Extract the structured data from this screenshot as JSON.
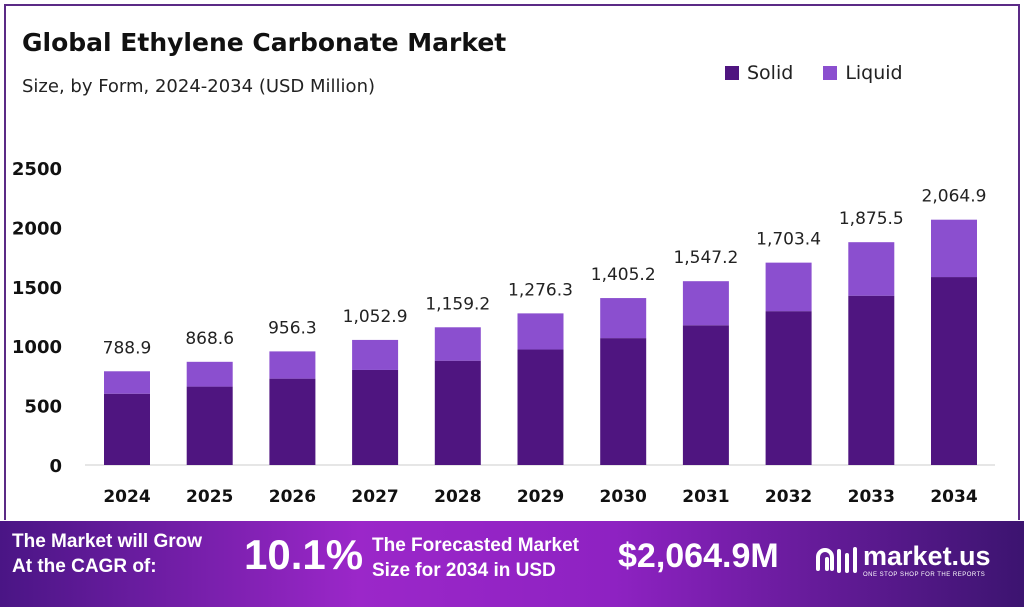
{
  "chart_data": {
    "type": "bar",
    "stacked": true,
    "title": "Global Ethylene Carbonate Market",
    "subtitle": "Size, by Form, 2024-2034 (USD Million)",
    "categories": [
      "2024",
      "2025",
      "2026",
      "2027",
      "2028",
      "2029",
      "2030",
      "2031",
      "2032",
      "2033",
      "2034"
    ],
    "series": [
      {
        "name": "Solid",
        "color": "#4f1580",
        "values": [
          600,
          660,
          727,
          800,
          878,
          972,
          1068,
          1176,
          1295,
          1425,
          1582
        ]
      },
      {
        "name": "Liquid",
        "color": "#8b4fcf",
        "values": [
          188.9,
          208.6,
          229.3,
          252.9,
          281.2,
          304.3,
          337.2,
          371.2,
          408.4,
          450.5,
          482.9
        ]
      }
    ],
    "totals": [
      "788.9",
      "868.6",
      "956.3",
      "1,052.9",
      "1,159.2",
      "1,276.3",
      "1,405.2",
      "1,547.2",
      "1,703.4",
      "1,875.5",
      "2,064.9"
    ],
    "totals_values": [
      788.9,
      868.6,
      956.3,
      1052.9,
      1159.2,
      1276.3,
      1405.2,
      1547.2,
      1703.4,
      1875.5,
      2064.9
    ],
    "ylim": [
      0,
      2500
    ],
    "yticks": [
      "0",
      "500",
      "1000",
      "1500",
      "2000",
      "2500"
    ],
    "grid": false,
    "legend": "top-right"
  },
  "footer": {
    "cagr_label_1": "The Market will Grow",
    "cagr_label_2": "At the CAGR of:",
    "cagr": "10.1%",
    "forecast_label_1": "The Forecasted Market",
    "forecast_label_2": "Size for 2034 in USD",
    "forecast": "$2,064.9M",
    "brand": "market.us",
    "tagline": "ONE STOP SHOP FOR THE REPORTS"
  }
}
